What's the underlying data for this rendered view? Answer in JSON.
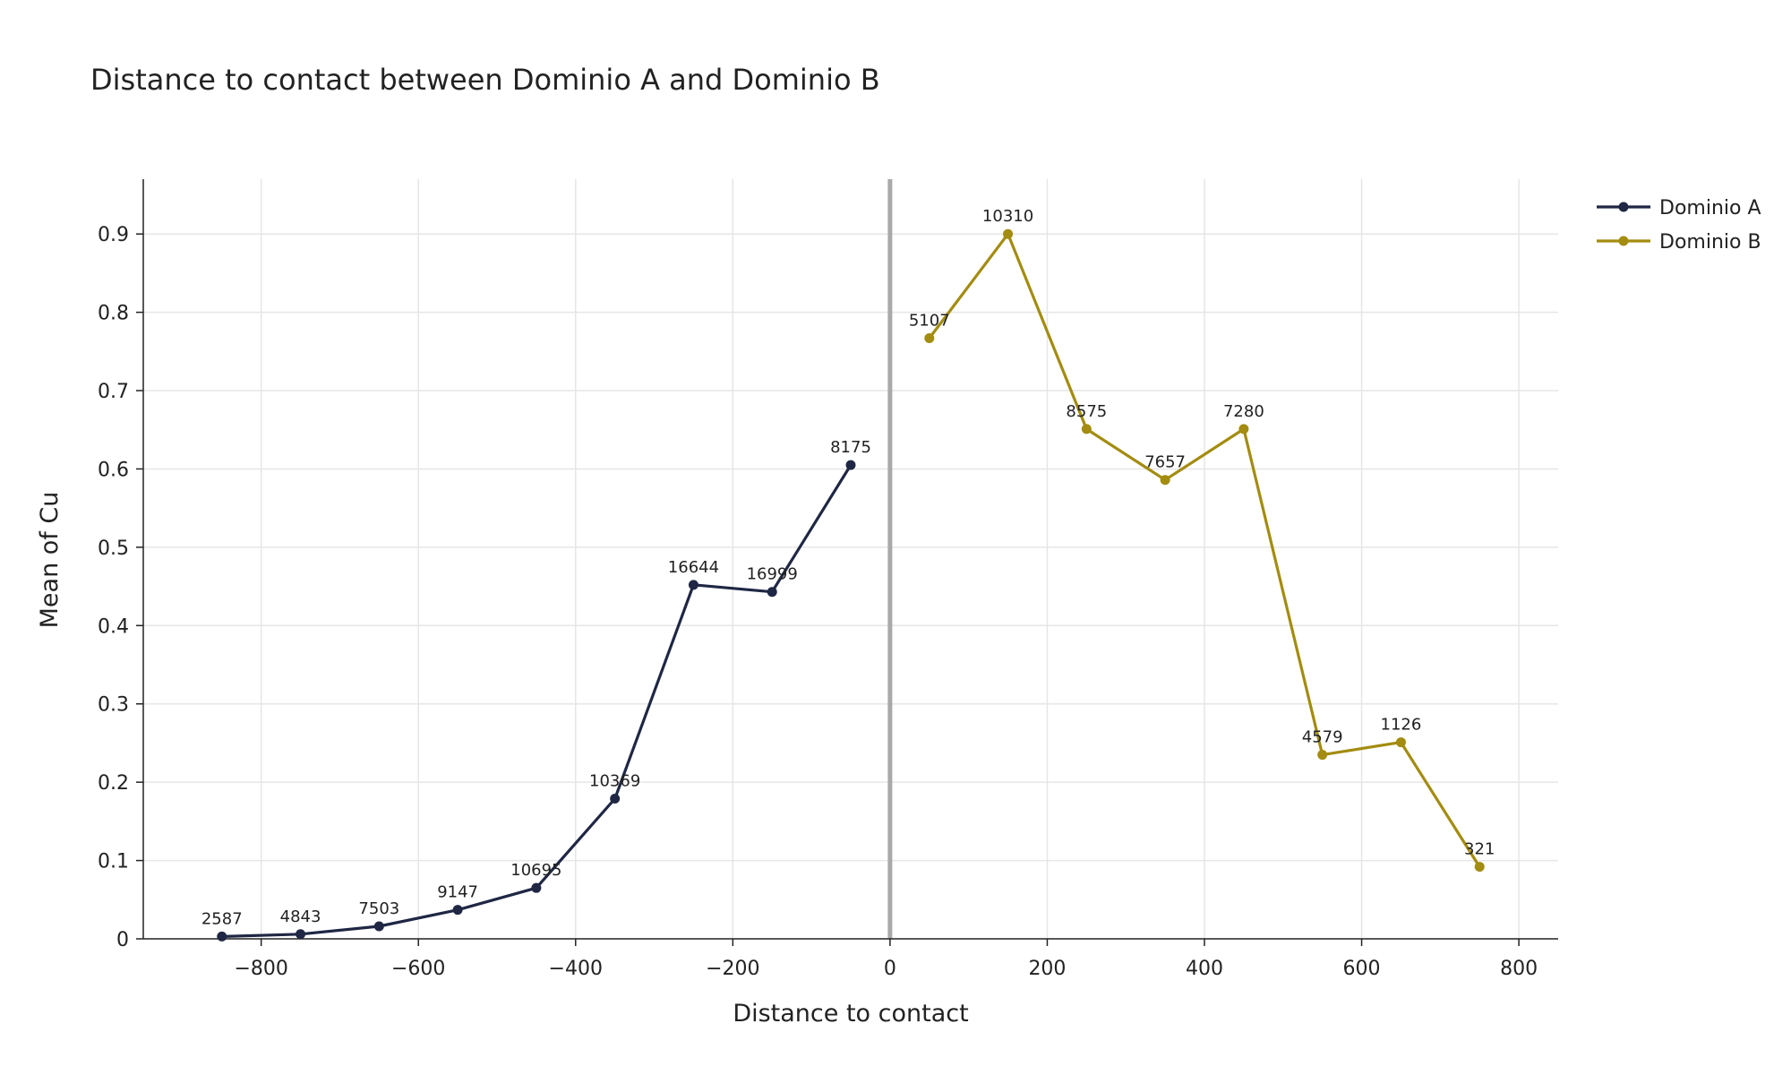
{
  "chart_data": {
    "type": "line",
    "title": "Distance to contact between Dominio A and Dominio B",
    "xlabel": "Distance to contact",
    "ylabel": "Mean of Cu",
    "xlim": [
      -950,
      850
    ],
    "ylim": [
      0,
      0.97
    ],
    "x_ticks": [
      -800,
      -600,
      -400,
      -200,
      0,
      200,
      400,
      600,
      800
    ],
    "x_tick_labels": [
      "−800",
      "−600",
      "−400",
      "−200",
      "0",
      "200",
      "400",
      "600",
      "800"
    ],
    "y_ticks": [
      0,
      0.1,
      0.2,
      0.3,
      0.4,
      0.5,
      0.6,
      0.7,
      0.8,
      0.9
    ],
    "y_tick_labels": [
      "0",
      "0.1",
      "0.2",
      "0.3",
      "0.4",
      "0.5",
      "0.6",
      "0.7",
      "0.8",
      "0.9"
    ],
    "grid": true,
    "contact_line_x": 0,
    "legend_position": "top-right",
    "series": [
      {
        "name": "Dominio A",
        "color": "#1f2744",
        "x": [
          -850,
          -750,
          -650,
          -550,
          -450,
          -350,
          -250,
          -150,
          -50
        ],
        "y": [
          0.003,
          0.006,
          0.016,
          0.037,
          0.065,
          0.179,
          0.452,
          0.443,
          0.605
        ],
        "labels": [
          "2587",
          "4843",
          "7503",
          "9147",
          "10695",
          "10369",
          "16644",
          "16999",
          "8175"
        ]
      },
      {
        "name": "Dominio B",
        "color": "#a38c0f",
        "x": [
          50,
          150,
          250,
          350,
          450,
          550,
          650,
          750
        ],
        "y": [
          0.767,
          0.9,
          0.651,
          0.586,
          0.651,
          0.235,
          0.251,
          0.092
        ],
        "labels": [
          "5107",
          "10310",
          "8575",
          "7657",
          "7280",
          "4579",
          "1126",
          "321"
        ]
      }
    ]
  }
}
